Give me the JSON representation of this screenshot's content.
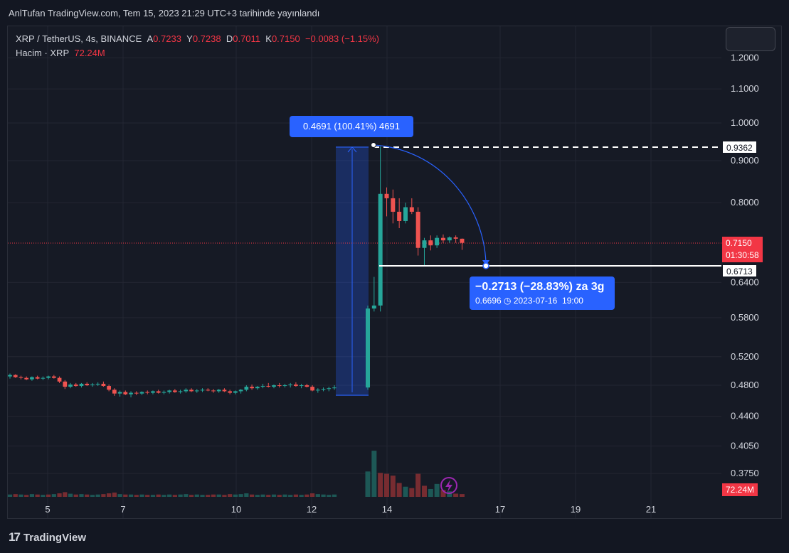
{
  "header": {
    "publish_text": "AnlTufan TradingView.com, Tem 15, 2023 21:29 UTC+3 tarihinde yayınlandı"
  },
  "legend": {
    "symbol": "XRP / TetherUS, 4s, BINANCE",
    "open_label": "A",
    "open_value": "0.7233",
    "high_label": "Y",
    "high_value": "0.7238",
    "low_label": "D",
    "low_value": "0.7011",
    "close_label": "K",
    "close_value": "0.7150",
    "change": "−0.0083 (−1.15%)",
    "volume_label": "Hacim · XRP",
    "volume_value": "72.24M"
  },
  "price_labels": {
    "line_high": "0.9362",
    "line_low": "0.6713",
    "current_price": "0.7150",
    "countdown": "01:30:58",
    "volume_badge": "72.24M"
  },
  "measure_top": "0.4691 (100.41%) 4691",
  "measure_bottom": {
    "main": "−0.2713 (−28.83%) za 3g",
    "detail_price": "0.6696",
    "detail_date": "2023-07-16",
    "detail_time": "19:00"
  },
  "footer": {
    "brand": "TradingView"
  },
  "colors": {
    "up": "#26a69a",
    "down": "#ef5350",
    "bg": "#161a25",
    "grid": "#232632",
    "accent": "#2962ff"
  },
  "chart_data": {
    "type": "candlestick",
    "y_scale": "log",
    "y_ticks": [
      "1.2000",
      "1.1000",
      "1.0000",
      "0.9000",
      "0.8000",
      "0.6400",
      "0.5800",
      "0.5200",
      "0.4800",
      "0.4400",
      "0.4050",
      "0.3750"
    ],
    "x_ticks": [
      "5",
      "7",
      "10",
      "12",
      "14",
      "17",
      "19",
      "21"
    ],
    "candles_before_breakout": [
      [
        0.492,
        0.496,
        0.489,
        0.494
      ],
      [
        0.494,
        0.495,
        0.49,
        0.491
      ],
      [
        0.491,
        0.493,
        0.488,
        0.49
      ],
      [
        0.49,
        0.492,
        0.487,
        0.488
      ],
      [
        0.488,
        0.492,
        0.486,
        0.491
      ],
      [
        0.491,
        0.493,
        0.488,
        0.489
      ],
      [
        0.489,
        0.492,
        0.487,
        0.49
      ],
      [
        0.49,
        0.493,
        0.488,
        0.492
      ],
      [
        0.492,
        0.494,
        0.489,
        0.49
      ],
      [
        0.49,
        0.492,
        0.483,
        0.485
      ],
      [
        0.485,
        0.487,
        0.475,
        0.478
      ],
      [
        0.478,
        0.483,
        0.476,
        0.481
      ],
      [
        0.481,
        0.483,
        0.478,
        0.479
      ],
      [
        0.479,
        0.483,
        0.477,
        0.482
      ],
      [
        0.482,
        0.484,
        0.479,
        0.48
      ],
      [
        0.48,
        0.483,
        0.478,
        0.481
      ],
      [
        0.481,
        0.484,
        0.479,
        0.482
      ],
      [
        0.482,
        0.485,
        0.478,
        0.479
      ],
      [
        0.479,
        0.481,
        0.472,
        0.474
      ],
      [
        0.474,
        0.476,
        0.466,
        0.469
      ],
      [
        0.469,
        0.473,
        0.465,
        0.471
      ],
      [
        0.471,
        0.473,
        0.467,
        0.468
      ],
      [
        0.468,
        0.472,
        0.464,
        0.47
      ],
      [
        0.47,
        0.472,
        0.467,
        0.469
      ],
      [
        0.469,
        0.472,
        0.467,
        0.471
      ],
      [
        0.471,
        0.473,
        0.468,
        0.47
      ],
      [
        0.47,
        0.473,
        0.468,
        0.472
      ],
      [
        0.472,
        0.474,
        0.469,
        0.47
      ],
      [
        0.47,
        0.473,
        0.468,
        0.471
      ],
      [
        0.471,
        0.474,
        0.469,
        0.473
      ],
      [
        0.473,
        0.475,
        0.47,
        0.471
      ],
      [
        0.471,
        0.474,
        0.469,
        0.472
      ],
      [
        0.472,
        0.476,
        0.47,
        0.474
      ],
      [
        0.474,
        0.476,
        0.471,
        0.472
      ],
      [
        0.472,
        0.475,
        0.47,
        0.473
      ],
      [
        0.473,
        0.476,
        0.471,
        0.474
      ],
      [
        0.474,
        0.476,
        0.472,
        0.473
      ],
      [
        0.473,
        0.475,
        0.47,
        0.472
      ],
      [
        0.472,
        0.475,
        0.47,
        0.474
      ],
      [
        0.474,
        0.476,
        0.471,
        0.472
      ],
      [
        0.472,
        0.474,
        0.468,
        0.47
      ],
      [
        0.47,
        0.473,
        0.468,
        0.472
      ],
      [
        0.472,
        0.475,
        0.469,
        0.474
      ],
      [
        0.474,
        0.48,
        0.472,
        0.478
      ],
      [
        0.478,
        0.481,
        0.474,
        0.476
      ],
      [
        0.476,
        0.479,
        0.474,
        0.478
      ],
      [
        0.478,
        0.482,
        0.476,
        0.479
      ],
      [
        0.479,
        0.483,
        0.477,
        0.478
      ],
      [
        0.478,
        0.481,
        0.476,
        0.48
      ],
      [
        0.48,
        0.483,
        0.477,
        0.479
      ],
      [
        0.479,
        0.482,
        0.477,
        0.48
      ],
      [
        0.48,
        0.483,
        0.477,
        0.481
      ],
      [
        0.481,
        0.484,
        0.478,
        0.479
      ],
      [
        0.479,
        0.482,
        0.476,
        0.48
      ],
      [
        0.48,
        0.482,
        0.477,
        0.478
      ],
      [
        0.478,
        0.48,
        0.472,
        0.473
      ],
      [
        0.473,
        0.476,
        0.47,
        0.474
      ],
      [
        0.474,
        0.477,
        0.472,
        0.475
      ],
      [
        0.475,
        0.478,
        0.472,
        0.476
      ],
      [
        0.476,
        0.48,
        0.474,
        0.477
      ]
    ],
    "candles_breakout": [
      [
        0.477,
        0.6,
        0.474,
        0.595
      ],
      [
        0.595,
        0.65,
        0.59,
        0.6
      ],
      [
        0.6,
        0.9362,
        0.59,
        0.82
      ],
      [
        0.82,
        0.835,
        0.77,
        0.81
      ],
      [
        0.81,
        0.83,
        0.755,
        0.78
      ],
      [
        0.78,
        0.81,
        0.745,
        0.76
      ],
      [
        0.76,
        0.8,
        0.755,
        0.79
      ],
      [
        0.79,
        0.81,
        0.775,
        0.78
      ],
      [
        0.78,
        0.79,
        0.69,
        0.705
      ],
      [
        0.705,
        0.725,
        0.6713,
        0.72
      ],
      [
        0.72,
        0.73,
        0.7,
        0.71
      ],
      [
        0.71,
        0.73,
        0.705,
        0.725
      ],
      [
        0.725,
        0.732,
        0.715,
        0.72
      ],
      [
        0.72,
        0.728,
        0.715,
        0.726
      ],
      [
        0.726,
        0.73,
        0.715,
        0.7233
      ],
      [
        0.7233,
        0.7238,
        0.7011,
        0.715
      ]
    ],
    "volume": [
      [
        6,
        0
      ],
      [
        7,
        1
      ],
      [
        6,
        0
      ],
      [
        5,
        1
      ],
      [
        7,
        0
      ],
      [
        6,
        1
      ],
      [
        5,
        0
      ],
      [
        6,
        1
      ],
      [
        7,
        0
      ],
      [
        9,
        1
      ],
      [
        12,
        1
      ],
      [
        8,
        0
      ],
      [
        6,
        1
      ],
      [
        7,
        0
      ],
      [
        6,
        1
      ],
      [
        5,
        0
      ],
      [
        6,
        0
      ],
      [
        7,
        1
      ],
      [
        9,
        1
      ],
      [
        11,
        1
      ],
      [
        7,
        0
      ],
      [
        6,
        1
      ],
      [
        6,
        0
      ],
      [
        5,
        1
      ],
      [
        6,
        0
      ],
      [
        5,
        1
      ],
      [
        5,
        0
      ],
      [
        6,
        1
      ],
      [
        5,
        0
      ],
      [
        6,
        0
      ],
      [
        5,
        1
      ],
      [
        6,
        0
      ],
      [
        7,
        0
      ],
      [
        5,
        1
      ],
      [
        6,
        0
      ],
      [
        5,
        0
      ],
      [
        5,
        1
      ],
      [
        6,
        1
      ],
      [
        6,
        0
      ],
      [
        5,
        1
      ],
      [
        7,
        1
      ],
      [
        6,
        0
      ],
      [
        7,
        0
      ],
      [
        9,
        0
      ],
      [
        6,
        1
      ],
      [
        5,
        0
      ],
      [
        6,
        0
      ],
      [
        5,
        1
      ],
      [
        6,
        0
      ],
      [
        5,
        1
      ],
      [
        6,
        0
      ],
      [
        5,
        0
      ],
      [
        6,
        1
      ],
      [
        5,
        0
      ],
      [
        6,
        1
      ],
      [
        9,
        1
      ],
      [
        7,
        0
      ],
      [
        6,
        0
      ],
      [
        5,
        0
      ],
      [
        6,
        0
      ],
      [
        55,
        0
      ],
      [
        100,
        0
      ],
      [
        52,
        1
      ],
      [
        50,
        1
      ],
      [
        46,
        1
      ],
      [
        30,
        1
      ],
      [
        22,
        0
      ],
      [
        19,
        1
      ],
      [
        50,
        1
      ],
      [
        24,
        1
      ],
      [
        17,
        0
      ],
      [
        28,
        0
      ],
      [
        15,
        1
      ],
      [
        12,
        0
      ],
      [
        7,
        1
      ],
      [
        6,
        1
      ]
    ]
  }
}
